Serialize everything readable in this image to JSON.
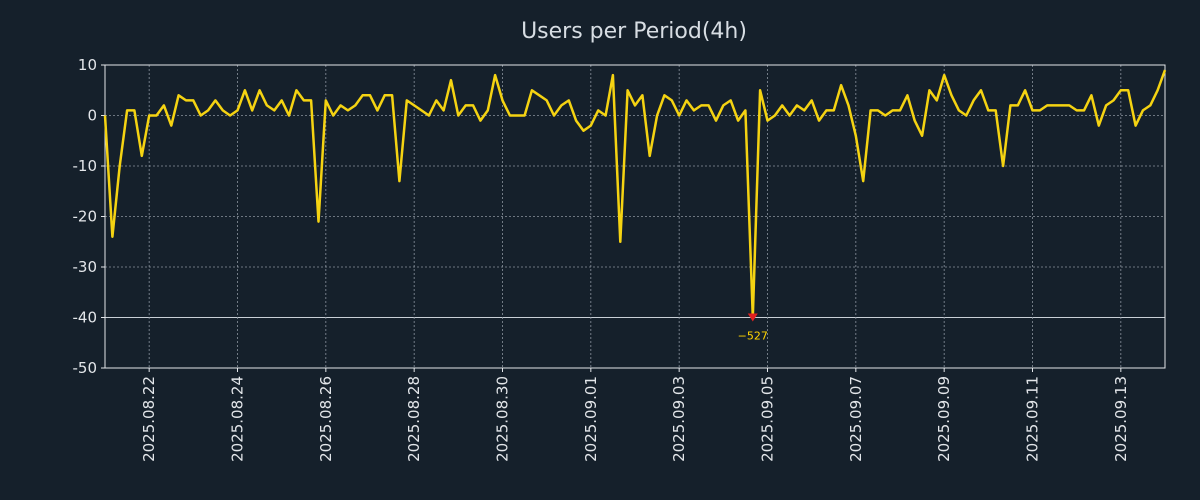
{
  "chart_data": {
    "type": "line",
    "title": "Users per Period(4h)",
    "xlabel": "",
    "ylabel": "",
    "ylim": [
      -50,
      10
    ],
    "yticks": [
      10,
      0,
      -10,
      -20,
      -30,
      -40,
      -50
    ],
    "xtick_labels": [
      "2025.08.22",
      "2025.08.24",
      "2025.08.26",
      "2025.08.28",
      "2025.08.30",
      "2025.09.01",
      "2025.09.03",
      "2025.09.05",
      "2025.09.07",
      "2025.09.09",
      "2025.09.11",
      "2025.09.13"
    ],
    "grid": true,
    "reference_line": -40,
    "series": [
      {
        "name": "Users per Period(4h)",
        "color": "#f5d312",
        "values": [
          0,
          -24,
          -10,
          1,
          1,
          -8,
          0,
          0,
          2,
          -2,
          4,
          3,
          3,
          0,
          1,
          3,
          1,
          0,
          1,
          5,
          1,
          5,
          2,
          1,
          3,
          0,
          5,
          3,
          3,
          -21,
          3,
          0,
          2,
          1,
          2,
          4,
          4,
          1,
          4,
          4,
          -13,
          3,
          2,
          1,
          0,
          3,
          1,
          7,
          0,
          2,
          2,
          -1,
          1,
          8,
          3,
          0,
          0,
          0,
          5,
          4,
          3,
          0,
          2,
          3,
          -1,
          -3,
          -2,
          1,
          0,
          8,
          -25,
          5,
          2,
          4,
          -8,
          0,
          4,
          3,
          0,
          3,
          1,
          2,
          2,
          -1,
          2,
          3,
          -1,
          1,
          -40,
          5,
          -1,
          0,
          2,
          0,
          2,
          1,
          3,
          -1,
          1,
          1,
          6,
          2,
          -4,
          -13,
          1,
          1,
          0,
          1,
          1,
          4,
          -1,
          -4,
          5,
          3,
          8,
          4,
          1,
          0,
          3,
          5,
          1,
          1,
          -10,
          2,
          2,
          5,
          1,
          1,
          2,
          2,
          2,
          2,
          1,
          1,
          4,
          -2,
          2,
          3,
          5,
          5,
          -2,
          1,
          2,
          5,
          9
        ]
      }
    ],
    "annotations": [
      {
        "label": "−527",
        "x_index": 88,
        "y": -40,
        "marker": "down-triangle",
        "color": "#e02020"
      }
    ]
  }
}
